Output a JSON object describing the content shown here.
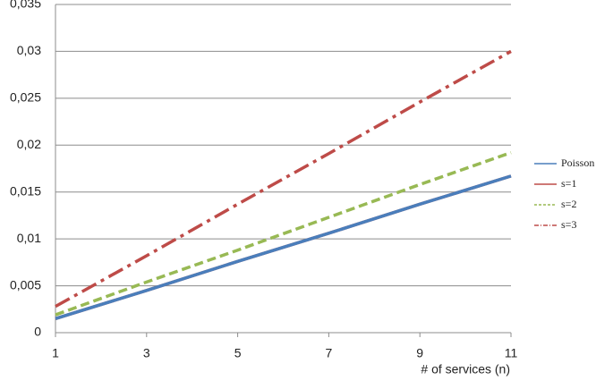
{
  "chart_data": {
    "type": "line",
    "x_label": "# of services (n)",
    "x": [
      1,
      3,
      5,
      7,
      9,
      11
    ],
    "xlim": [
      1,
      11
    ],
    "xticks": [
      1,
      3,
      5,
      7,
      9,
      11
    ],
    "ylim": [
      0,
      0.035
    ],
    "yticks": [
      0,
      {
        "value": 0.005,
        "label": "0,005"
      },
      {
        "value": 0.01,
        "label": "0,01"
      },
      {
        "value": 0.015,
        "label": "0,015"
      },
      {
        "value": 0.02,
        "label": "0,02"
      },
      {
        "value": 0.025,
        "label": "0,025"
      },
      {
        "value": 0.03,
        "label": "0,03"
      },
      {
        "value": 0.035,
        "label": "0,035"
      }
    ],
    "grid": true,
    "legend": "right",
    "series": [
      {
        "name": "Poisson",
        "color": "#4a7ebb",
        "dash": "solid",
        "values": [
          0.0015,
          0.0045,
          0.0076,
          0.0106,
          0.0137,
          0.0167
        ]
      },
      {
        "name": "s=1",
        "color": "#be4b48",
        "dash": "solid",
        "values": [
          0.0015,
          0.0045,
          0.0076,
          0.0106,
          0.0137,
          0.0167
        ]
      },
      {
        "name": "s=2",
        "color": "#98b954",
        "dash": "dashed",
        "values": [
          0.0019,
          0.0054,
          0.0088,
          0.0123,
          0.0158,
          0.0192
        ]
      },
      {
        "name": "s=3",
        "color": "#be4b48",
        "dash": "dashdot",
        "values": [
          0.0028,
          0.0082,
          0.0137,
          0.0191,
          0.0246,
          0.03
        ]
      }
    ]
  }
}
